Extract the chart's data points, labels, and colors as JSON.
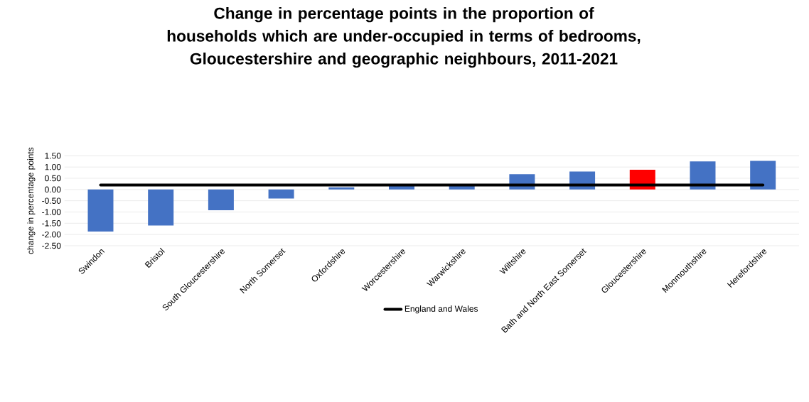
{
  "chart_data": {
    "type": "bar",
    "title": "Change in percentage points in the proportion of households which are under-occupied in terms of bedrooms, Gloucestershire and geographic neighbours, 2011-2021",
    "ylabel": "change in percentage points",
    "categories": [
      "Swindon",
      "Bristol",
      "South Gloucestershire",
      "North Somerset",
      "Oxfordshire",
      "Worcestershire",
      "Warwickshire",
      "Wiltshire",
      "Bath and North East Somerset",
      "Gloucestershire",
      "Monmouthshire",
      "Herefordshire"
    ],
    "series": [
      {
        "values": [
          -1.87,
          -1.6,
          -0.92,
          -0.4,
          0.1,
          0.15,
          0.25,
          0.68,
          0.8,
          0.88,
          1.25,
          1.27
        ],
        "colors": [
          "#4472c4",
          "#4472c4",
          "#4472c4",
          "#4472c4",
          "#4472c4",
          "#4472c4",
          "#4472c4",
          "#4472c4",
          "#4472c4",
          "#ff0000",
          "#4472c4",
          "#4472c4"
        ]
      },
      {
        "type": "line",
        "name": "England and Wales",
        "color": "#000000",
        "values": [
          0.2,
          0.2,
          0.2,
          0.2,
          0.2,
          0.2,
          0.2,
          0.2,
          0.2,
          0.2,
          0.2,
          0.2
        ]
      }
    ],
    "ylim": [
      -2.5,
      1.5
    ],
    "yticks": [
      {
        "value": -2.5,
        "label": "-2.50"
      },
      {
        "value": -2.0,
        "label": "-2.00"
      },
      {
        "value": -1.5,
        "label": "-1.50"
      },
      {
        "value": -1.0,
        "label": "-1.00"
      },
      {
        "value": -0.5,
        "label": "-0.50"
      },
      {
        "value": 0,
        "label": "0.00"
      },
      {
        "value": 0.5,
        "label": "0.50"
      },
      {
        "value": 1.0,
        "label": "1.00"
      },
      {
        "value": 1.5,
        "label": "1.50"
      }
    ],
    "grid": "y",
    "legend": "bottom"
  }
}
